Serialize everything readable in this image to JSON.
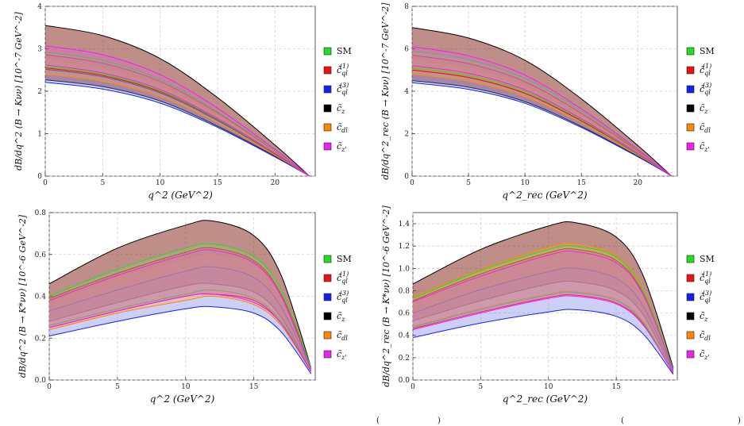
{
  "legend_colors": {
    "SM": "#22dd22",
    "cql1": "#ee1111",
    "cql3": "#1122ee",
    "cz": "#000000",
    "cdl": "#ff8800",
    "czp": "#ee22ee"
  },
  "chart_data": [
    {
      "type": "area",
      "xlabel": "q^2 (GeV^2)",
      "ylabel": "dB/dq^2 (B → Kνν) [10^-7 GeV^-2]",
      "xlim": [
        0,
        23.5
      ],
      "ylim": [
        0,
        4
      ],
      "xticks": [
        "0",
        "5",
        "10",
        "15",
        "20"
      ],
      "yticks": [
        "0",
        "1",
        "2",
        "3",
        "4"
      ],
      "grid": true,
      "legend_position": "right",
      "legend": [
        "SM",
        "c̃_ql^(1)",
        "c̃_ql^(3)",
        "c̃_z",
        "c̃_dl",
        "c̃_z'"
      ],
      "x": [
        0,
        5,
        10,
        15,
        20,
        23
      ],
      "series": [
        {
          "name": "c̃_z",
          "band": [
            [
              2.27,
              3.55
            ],
            [
              2.11,
              3.31
            ],
            [
              1.77,
              2.77
            ],
            [
              1.18,
              1.85
            ],
            [
              0.47,
              0.73
            ],
            [
              0,
              0
            ]
          ]
        },
        {
          "name": "c̃_ql^(3)",
          "band": [
            [
              2.21,
              2.52
            ],
            [
              2.05,
              2.34
            ],
            [
              1.72,
              1.96
            ],
            [
              1.15,
              1.31
            ],
            [
              0.45,
              0.52
            ],
            [
              0,
              0
            ]
          ]
        },
        {
          "name": "c̃_dl",
          "band": [
            [
              2.4,
              2.76
            ],
            [
              2.23,
              2.56
            ],
            [
              1.87,
              2.15
            ],
            [
              1.25,
              1.43
            ],
            [
              0.49,
              0.57
            ],
            [
              0,
              0
            ]
          ]
        },
        {
          "name": "c̃_ql^(1)",
          "band": [
            [
              2.55,
              2.86
            ],
            [
              2.37,
              2.66
            ],
            [
              1.99,
              2.23
            ],
            [
              1.33,
              1.49
            ],
            [
              0.52,
              0.59
            ],
            [
              0,
              0
            ]
          ]
        },
        {
          "name": "SM",
          "band": [
            [
              2.58,
              2.92
            ],
            [
              2.4,
              2.72
            ],
            [
              2.01,
              2.28
            ],
            [
              1.34,
              1.52
            ],
            [
              0.53,
              0.6
            ],
            [
              0,
              0
            ]
          ]
        },
        {
          "name": "c̃_z'",
          "band": [
            [
              2.62,
              3.07
            ],
            [
              2.43,
              2.86
            ],
            [
              2.04,
              2.39
            ],
            [
              1.36,
              1.6
            ],
            [
              0.54,
              0.63
            ],
            [
              0,
              0
            ]
          ]
        }
      ]
    },
    {
      "type": "area",
      "xlabel": "q^2_rec (GeV^2)",
      "ylabel": "dB/dq^2_rec (B → Kνν) [10^-7 GeV^-2]",
      "xlim": [
        0,
        23.5
      ],
      "ylim": [
        0,
        8
      ],
      "xticks": [
        "0",
        "5",
        "10",
        "15",
        "20"
      ],
      "yticks": [
        "0",
        "2",
        "4",
        "6",
        "8"
      ],
      "grid": true,
      "legend_position": "right",
      "legend": [
        "SM",
        "c̃_ql^(1)",
        "c̃_ql^(3)",
        "c̃_z",
        "c̃_dl",
        "c̃_z'"
      ],
      "x": [
        0,
        5,
        10,
        15,
        20,
        23
      ],
      "series": [
        {
          "name": "c̃_z",
          "band": [
            [
              4.5,
              7.0
            ],
            [
              4.19,
              6.51
            ],
            [
              3.51,
              5.46
            ],
            [
              2.34,
              3.64
            ],
            [
              0.93,
              1.44
            ],
            [
              0,
              0
            ]
          ]
        },
        {
          "name": "c̃_ql^(3)",
          "band": [
            [
              4.4,
              5.0
            ],
            [
              4.09,
              4.65
            ],
            [
              3.43,
              3.9
            ],
            [
              2.29,
              2.6
            ],
            [
              0.91,
              1.03
            ],
            [
              0,
              0
            ]
          ]
        },
        {
          "name": "c̃_dl",
          "band": [
            [
              4.8,
              5.5
            ],
            [
              4.46,
              5.12
            ],
            [
              3.74,
              4.29
            ],
            [
              2.5,
              2.86
            ],
            [
              0.99,
              1.14
            ],
            [
              0,
              0
            ]
          ]
        },
        {
          "name": "c̃_ql^(1)",
          "band": [
            [
              5.0,
              5.7
            ],
            [
              4.65,
              5.3
            ],
            [
              3.9,
              4.45
            ],
            [
              2.6,
              2.96
            ],
            [
              1.03,
              1.18
            ],
            [
              0,
              0
            ]
          ]
        },
        {
          "name": "SM",
          "band": [
            [
              5.1,
              5.9
            ],
            [
              4.74,
              5.49
            ],
            [
              3.98,
              4.6
            ],
            [
              2.65,
              3.07
            ],
            [
              1.05,
              1.22
            ],
            [
              0,
              0
            ]
          ]
        },
        {
          "name": "c̃_z'",
          "band": [
            [
              5.2,
              6.1
            ],
            [
              4.84,
              5.67
            ],
            [
              4.06,
              4.76
            ],
            [
              2.7,
              3.17
            ],
            [
              1.08,
              1.26
            ],
            [
              0,
              0
            ]
          ]
        }
      ]
    },
    {
      "type": "area",
      "xlabel": "q^2 (GeV^2)",
      "ylabel": "dB/dq^2 (B → K*νν) [10^-6 GeV^-2]",
      "xlim": [
        0,
        19.5
      ],
      "ylim": [
        0,
        0.8
      ],
      "xticks": [
        "0",
        "5",
        "10",
        "15"
      ],
      "yticks": [
        "0.0",
        "0.2",
        "0.4",
        "0.6",
        "0.8"
      ],
      "grid": true,
      "legend_position": "right",
      "legend": [
        "SM",
        "c̃_ql^(1)",
        "c̃_ql^(3)",
        "c̃_z",
        "c̃_dl",
        "c̃_z'"
      ],
      "x": [
        0,
        5,
        10,
        12,
        15,
        17,
        19.2
      ],
      "series": [
        {
          "name": "c̃_z",
          "band": [
            [
              0.28,
              0.46
            ],
            [
              0.37,
              0.63
            ],
            [
              0.45,
              0.74
            ],
            [
              0.46,
              0.76
            ],
            [
              0.42,
              0.69
            ],
            [
              0.3,
              0.5
            ],
            [
              0.04,
              0.06
            ]
          ]
        },
        {
          "name": "c̃_ql^(3)",
          "band": [
            [
              0.21,
              0.33
            ],
            [
              0.28,
              0.43
            ],
            [
              0.34,
              0.52
            ],
            [
              0.35,
              0.54
            ],
            [
              0.32,
              0.49
            ],
            [
              0.23,
              0.35
            ],
            [
              0.03,
              0.05
            ]
          ]
        },
        {
          "name": "c̃_dl",
          "band": [
            [
              0.24,
              0.37
            ],
            [
              0.32,
              0.49
            ],
            [
              0.38,
              0.58
            ],
            [
              0.4,
              0.6
            ],
            [
              0.36,
              0.55
            ],
            [
              0.26,
              0.4
            ],
            [
              0.04,
              0.05
            ]
          ]
        },
        {
          "name": "c̃_ql^(1)",
          "band": [
            [
              0.25,
              0.39
            ],
            [
              0.33,
              0.51
            ],
            [
              0.4,
              0.61
            ],
            [
              0.41,
              0.63
            ],
            [
              0.38,
              0.57
            ],
            [
              0.27,
              0.41
            ],
            [
              0.04,
              0.06
            ]
          ]
        },
        {
          "name": "SM",
          "band": [
            [
              0.26,
              0.4
            ],
            [
              0.34,
              0.53
            ],
            [
              0.41,
              0.63
            ],
            [
              0.43,
              0.65
            ],
            [
              0.39,
              0.59
            ],
            [
              0.28,
              0.43
            ],
            [
              0.04,
              0.06
            ]
          ]
        },
        {
          "name": "c̃_z'",
          "band": [
            [
              0.25,
              0.38
            ],
            [
              0.33,
              0.5
            ],
            [
              0.4,
              0.6
            ],
            [
              0.41,
              0.62
            ],
            [
              0.37,
              0.56
            ],
            [
              0.27,
              0.4
            ],
            [
              0.04,
              0.05
            ]
          ]
        }
      ]
    },
    {
      "type": "area",
      "xlabel": "q^2_rec (GeV^2)",
      "ylabel": "dB/dq^2_rec (B → K*νν) [10^-6 GeV^-2]",
      "xlim": [
        0,
        19.5
      ],
      "ylim": [
        0,
        1.5
      ],
      "xticks": [
        "0",
        "5",
        "10",
        "15"
      ],
      "yticks": [
        "0.0",
        "0.2",
        "0.4",
        "0.6",
        "0.8",
        "1.0",
        "1.2",
        "1.4"
      ],
      "grid": true,
      "legend_position": "right",
      "legend": [
        "SM",
        "c̃_ql^(1)",
        "c̃_ql^(3)",
        "c̃_z",
        "c̃_dl",
        "c̃_z'"
      ],
      "x": [
        0,
        5,
        10,
        12,
        15,
        17,
        19.2
      ],
      "series": [
        {
          "name": "c̃_z",
          "band": [
            [
              0.53,
              0.86
            ],
            [
              0.71,
              1.17
            ],
            [
              0.86,
              1.38
            ],
            [
              0.88,
              1.41
            ],
            [
              0.8,
              1.28
            ],
            [
              0.58,
              0.93
            ],
            [
              0.07,
              0.11
            ]
          ]
        },
        {
          "name": "c̃_ql^(3)",
          "band": [
            [
              0.38,
              0.6
            ],
            [
              0.51,
              0.81
            ],
            [
              0.61,
              0.97
            ],
            [
              0.63,
              1.0
            ],
            [
              0.57,
              0.91
            ],
            [
              0.41,
              0.66
            ],
            [
              0.05,
              0.08
            ]
          ]
        },
        {
          "name": "c̃_dl",
          "band": [
            [
              0.48,
              0.74
            ],
            [
              0.64,
              0.99
            ],
            [
              0.77,
              1.19
            ],
            [
              0.79,
              1.22
            ],
            [
              0.72,
              1.11
            ],
            [
              0.52,
              0.8
            ],
            [
              0.06,
              0.1
            ]
          ]
        },
        {
          "name": "c̃_ql^(1)",
          "band": [
            [
              0.46,
              0.71
            ],
            [
              0.61,
              0.95
            ],
            [
              0.74,
              1.14
            ],
            [
              0.76,
              1.17
            ],
            [
              0.69,
              1.07
            ],
            [
              0.5,
              0.77
            ],
            [
              0.06,
              0.09
            ]
          ]
        },
        {
          "name": "SM",
          "band": [
            [
              0.47,
              0.73
            ],
            [
              0.63,
              0.98
            ],
            [
              0.76,
              1.17
            ],
            [
              0.78,
              1.2
            ],
            [
              0.71,
              1.1
            ],
            [
              0.51,
              0.79
            ],
            [
              0.06,
              0.1
            ]
          ]
        },
        {
          "name": "c̃_z'",
          "band": [
            [
              0.45,
              0.7
            ],
            [
              0.6,
              0.93
            ],
            [
              0.73,
              1.12
            ],
            [
              0.75,
              1.15
            ],
            [
              0.68,
              1.05
            ],
            [
              0.49,
              0.76
            ],
            [
              0.06,
              0.09
            ]
          ]
        }
      ]
    }
  ],
  "caption_fragments": [
    "(",
    ")",
    "(",
    ")"
  ]
}
